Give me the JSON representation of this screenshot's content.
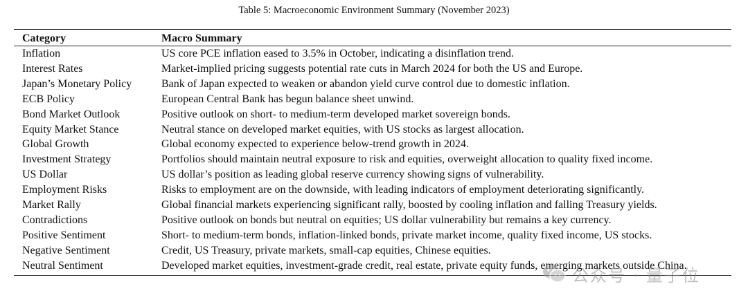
{
  "caption": "Table 5: Macroeconomic Environment Summary (November 2023)",
  "table": {
    "headers": [
      "Category",
      "Macro Summary"
    ],
    "rows": [
      {
        "category": "Inflation",
        "summary": "US core PCE inflation eased to 3.5% in October, indicating a disinflation trend."
      },
      {
        "category": "Interest Rates",
        "summary": "Market-implied pricing suggests potential rate cuts in March 2024 for both the US and Europe."
      },
      {
        "category": "Japan’s Monetary Policy",
        "summary": "Bank of Japan expected to weaken or abandon yield curve control due to domestic inflation."
      },
      {
        "category": "ECB Policy",
        "summary": "European Central Bank has begun balance sheet unwind."
      },
      {
        "category": "Bond Market Outlook",
        "summary": "Positive outlook on short- to medium-term developed market sovereign bonds."
      },
      {
        "category": "Equity Market Stance",
        "summary": "Neutral stance on developed market equities, with US stocks as largest allocation."
      },
      {
        "category": "Global Growth",
        "summary": "Global economy expected to experience below-trend growth in 2024."
      },
      {
        "category": "Investment Strategy",
        "summary": "Portfolios should maintain neutral exposure to risk and equities, overweight allocation to quality fixed income."
      },
      {
        "category": "US Dollar",
        "summary": "US dollar’s position as leading global reserve currency showing signs of vulnerability."
      },
      {
        "category": "Employment Risks",
        "summary": "Risks to employment are on the downside, with leading indicators of employment deteriorating significantly."
      },
      {
        "category": "Market Rally",
        "summary": "Global financial markets experiencing significant rally, boosted by cooling inflation and falling Treasury yields."
      },
      {
        "category": "Contradictions",
        "summary": "Positive outlook on bonds but neutral on equities; US dollar vulnerability but remains a key currency."
      },
      {
        "category": "Positive Sentiment",
        "summary": "Short- to medium-term bonds, inflation-linked bonds, private market income, quality fixed income, US stocks."
      },
      {
        "category": "Negative Sentiment",
        "summary": "Credit, US Treasury, private markets, small-cap equities, Chinese equities."
      },
      {
        "category": "Neutral Sentiment",
        "summary": "Developed market equities, investment-grade credit, real estate, private equity funds, emerging markets outside China."
      }
    ]
  },
  "watermark": {
    "icon": "wechat-logo-icon",
    "text": "公众号 · 量子位"
  }
}
